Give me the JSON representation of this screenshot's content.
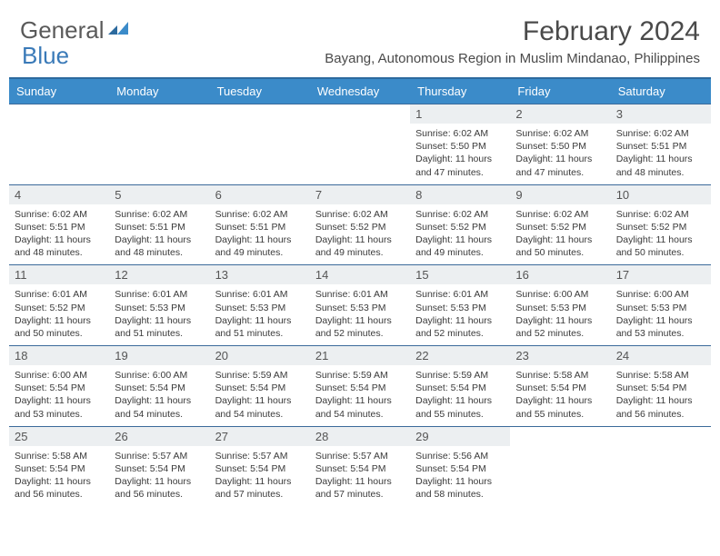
{
  "logo": {
    "text1": "General",
    "text2": "Blue"
  },
  "title": "February 2024",
  "location": "Bayang, Autonomous Region in Muslim Mindanao, Philippines",
  "colors": {
    "header_bg": "#3b8bc9",
    "header_border": "#2c6a9e",
    "row_border": "#3b6a9a",
    "daynum_bg": "#eceff1",
    "text": "#3a3a3a",
    "logo_gray": "#5a5a5a",
    "logo_blue": "#3a7ab8"
  },
  "typography": {
    "title_fontsize": 30,
    "location_fontsize": 15,
    "day_header_fontsize": 13,
    "daynum_fontsize": 13,
    "cell_fontsize": 10.5
  },
  "day_headers": [
    "Sunday",
    "Monday",
    "Tuesday",
    "Wednesday",
    "Thursday",
    "Friday",
    "Saturday"
  ],
  "weeks": [
    [
      {
        "n": "",
        "sunrise": "",
        "sunset": "",
        "daylight": ""
      },
      {
        "n": "",
        "sunrise": "",
        "sunset": "",
        "daylight": ""
      },
      {
        "n": "",
        "sunrise": "",
        "sunset": "",
        "daylight": ""
      },
      {
        "n": "",
        "sunrise": "",
        "sunset": "",
        "daylight": ""
      },
      {
        "n": "1",
        "sunrise": "Sunrise: 6:02 AM",
        "sunset": "Sunset: 5:50 PM",
        "daylight": "Daylight: 11 hours and 47 minutes."
      },
      {
        "n": "2",
        "sunrise": "Sunrise: 6:02 AM",
        "sunset": "Sunset: 5:50 PM",
        "daylight": "Daylight: 11 hours and 47 minutes."
      },
      {
        "n": "3",
        "sunrise": "Sunrise: 6:02 AM",
        "sunset": "Sunset: 5:51 PM",
        "daylight": "Daylight: 11 hours and 48 minutes."
      }
    ],
    [
      {
        "n": "4",
        "sunrise": "Sunrise: 6:02 AM",
        "sunset": "Sunset: 5:51 PM",
        "daylight": "Daylight: 11 hours and 48 minutes."
      },
      {
        "n": "5",
        "sunrise": "Sunrise: 6:02 AM",
        "sunset": "Sunset: 5:51 PM",
        "daylight": "Daylight: 11 hours and 48 minutes."
      },
      {
        "n": "6",
        "sunrise": "Sunrise: 6:02 AM",
        "sunset": "Sunset: 5:51 PM",
        "daylight": "Daylight: 11 hours and 49 minutes."
      },
      {
        "n": "7",
        "sunrise": "Sunrise: 6:02 AM",
        "sunset": "Sunset: 5:52 PM",
        "daylight": "Daylight: 11 hours and 49 minutes."
      },
      {
        "n": "8",
        "sunrise": "Sunrise: 6:02 AM",
        "sunset": "Sunset: 5:52 PM",
        "daylight": "Daylight: 11 hours and 49 minutes."
      },
      {
        "n": "9",
        "sunrise": "Sunrise: 6:02 AM",
        "sunset": "Sunset: 5:52 PM",
        "daylight": "Daylight: 11 hours and 50 minutes."
      },
      {
        "n": "10",
        "sunrise": "Sunrise: 6:02 AM",
        "sunset": "Sunset: 5:52 PM",
        "daylight": "Daylight: 11 hours and 50 minutes."
      }
    ],
    [
      {
        "n": "11",
        "sunrise": "Sunrise: 6:01 AM",
        "sunset": "Sunset: 5:52 PM",
        "daylight": "Daylight: 11 hours and 50 minutes."
      },
      {
        "n": "12",
        "sunrise": "Sunrise: 6:01 AM",
        "sunset": "Sunset: 5:53 PM",
        "daylight": "Daylight: 11 hours and 51 minutes."
      },
      {
        "n": "13",
        "sunrise": "Sunrise: 6:01 AM",
        "sunset": "Sunset: 5:53 PM",
        "daylight": "Daylight: 11 hours and 51 minutes."
      },
      {
        "n": "14",
        "sunrise": "Sunrise: 6:01 AM",
        "sunset": "Sunset: 5:53 PM",
        "daylight": "Daylight: 11 hours and 52 minutes."
      },
      {
        "n": "15",
        "sunrise": "Sunrise: 6:01 AM",
        "sunset": "Sunset: 5:53 PM",
        "daylight": "Daylight: 11 hours and 52 minutes."
      },
      {
        "n": "16",
        "sunrise": "Sunrise: 6:00 AM",
        "sunset": "Sunset: 5:53 PM",
        "daylight": "Daylight: 11 hours and 52 minutes."
      },
      {
        "n": "17",
        "sunrise": "Sunrise: 6:00 AM",
        "sunset": "Sunset: 5:53 PM",
        "daylight": "Daylight: 11 hours and 53 minutes."
      }
    ],
    [
      {
        "n": "18",
        "sunrise": "Sunrise: 6:00 AM",
        "sunset": "Sunset: 5:54 PM",
        "daylight": "Daylight: 11 hours and 53 minutes."
      },
      {
        "n": "19",
        "sunrise": "Sunrise: 6:00 AM",
        "sunset": "Sunset: 5:54 PM",
        "daylight": "Daylight: 11 hours and 54 minutes."
      },
      {
        "n": "20",
        "sunrise": "Sunrise: 5:59 AM",
        "sunset": "Sunset: 5:54 PM",
        "daylight": "Daylight: 11 hours and 54 minutes."
      },
      {
        "n": "21",
        "sunrise": "Sunrise: 5:59 AM",
        "sunset": "Sunset: 5:54 PM",
        "daylight": "Daylight: 11 hours and 54 minutes."
      },
      {
        "n": "22",
        "sunrise": "Sunrise: 5:59 AM",
        "sunset": "Sunset: 5:54 PM",
        "daylight": "Daylight: 11 hours and 55 minutes."
      },
      {
        "n": "23",
        "sunrise": "Sunrise: 5:58 AM",
        "sunset": "Sunset: 5:54 PM",
        "daylight": "Daylight: 11 hours and 55 minutes."
      },
      {
        "n": "24",
        "sunrise": "Sunrise: 5:58 AM",
        "sunset": "Sunset: 5:54 PM",
        "daylight": "Daylight: 11 hours and 56 minutes."
      }
    ],
    [
      {
        "n": "25",
        "sunrise": "Sunrise: 5:58 AM",
        "sunset": "Sunset: 5:54 PM",
        "daylight": "Daylight: 11 hours and 56 minutes."
      },
      {
        "n": "26",
        "sunrise": "Sunrise: 5:57 AM",
        "sunset": "Sunset: 5:54 PM",
        "daylight": "Daylight: 11 hours and 56 minutes."
      },
      {
        "n": "27",
        "sunrise": "Sunrise: 5:57 AM",
        "sunset": "Sunset: 5:54 PM",
        "daylight": "Daylight: 11 hours and 57 minutes."
      },
      {
        "n": "28",
        "sunrise": "Sunrise: 5:57 AM",
        "sunset": "Sunset: 5:54 PM",
        "daylight": "Daylight: 11 hours and 57 minutes."
      },
      {
        "n": "29",
        "sunrise": "Sunrise: 5:56 AM",
        "sunset": "Sunset: 5:54 PM",
        "daylight": "Daylight: 11 hours and 58 minutes."
      },
      {
        "n": "",
        "sunrise": "",
        "sunset": "",
        "daylight": ""
      },
      {
        "n": "",
        "sunrise": "",
        "sunset": "",
        "daylight": ""
      }
    ]
  ]
}
